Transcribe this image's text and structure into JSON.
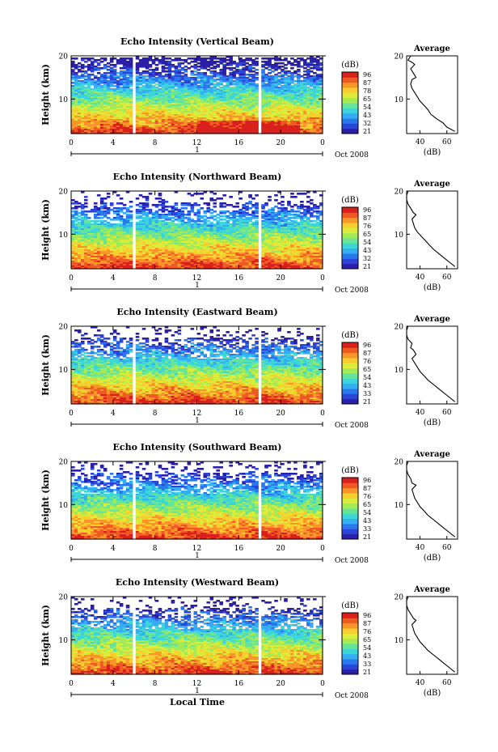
{
  "chart_data": {
    "type": "heatmap",
    "x_axis": {
      "label": "Local Time",
      "ticks": [
        "0",
        "4",
        "8",
        "12",
        "16",
        "20",
        "0"
      ],
      "range": [
        0,
        24
      ],
      "date_label": "Oct 2008",
      "day_label": "1"
    },
    "colorbar": {
      "unit": "(dB)",
      "tick_labels": [
        "96",
        "87",
        "78",
        "65",
        "54",
        "43",
        "32",
        "21"
      ],
      "colors": [
        "#2b1fa8",
        "#2a45d8",
        "#2a78ee",
        "#33aef2",
        "#3dd6d8",
        "#66e49a",
        "#a4ea56",
        "#dcec3a",
        "#f6cf2e",
        "#f8962a",
        "#ef5a24",
        "#d8201c"
      ]
    },
    "average_panel": {
      "title": "Average",
      "xlabel": "(dB)",
      "x_ticks": [
        "40",
        "60"
      ]
    },
    "y_axis": {
      "label": "Height (km)",
      "ticks": [
        "20",
        "10"
      ],
      "range": [
        2,
        20
      ]
    },
    "panels": [
      {
        "title": "Echo Intensity (Vertical Beam)",
        "cb_ticks": [
          "96",
          "87",
          "78",
          "65",
          "54",
          "43",
          "32",
          "21"
        ],
        "avg_x_ticks": [
          "40",
          "60"
        ],
        "avg_profile": [
          [
            66,
            2.5
          ],
          [
            60,
            3.5
          ],
          [
            57,
            4.5
          ],
          [
            52,
            5.5
          ],
          [
            48,
            6.5
          ],
          [
            46,
            7.5
          ],
          [
            43,
            8.5
          ],
          [
            40,
            9.5
          ],
          [
            38,
            10.5
          ],
          [
            36,
            11.5
          ],
          [
            34,
            12.5
          ],
          [
            33,
            13.5
          ],
          [
            34,
            14.5
          ],
          [
            37,
            15
          ],
          [
            35,
            16
          ],
          [
            33,
            17
          ],
          [
            36,
            18
          ],
          [
            34,
            18.5
          ],
          [
            31,
            19
          ],
          [
            33,
            20
          ]
        ]
      },
      {
        "title": "Echo Intensity (Northward Beam)",
        "cb_ticks": [
          "96",
          "87",
          "76",
          "65",
          "54",
          "43",
          "32",
          "21"
        ],
        "avg_x_ticks": [
          "40",
          "60"
        ],
        "avg_profile": [
          [
            66,
            2.5
          ],
          [
            62,
            3.5
          ],
          [
            58,
            4.5
          ],
          [
            54,
            5.5
          ],
          [
            50,
            6.5
          ],
          [
            47,
            7.5
          ],
          [
            44,
            8.5
          ],
          [
            41,
            9.5
          ],
          [
            38,
            10.5
          ],
          [
            36,
            11.5
          ],
          [
            35,
            12.5
          ],
          [
            34,
            13.5
          ],
          [
            37,
            14.5
          ],
          [
            35,
            15
          ],
          [
            33,
            16
          ],
          [
            31,
            17
          ],
          [
            30,
            18
          ],
          [
            30,
            19
          ],
          [
            31,
            20
          ]
        ]
      },
      {
        "title": "Echo Intensity (Eastward Beam)",
        "cb_ticks": [
          "96",
          "87",
          "76",
          "65",
          "54",
          "43",
          "33",
          "21"
        ],
        "avg_x_ticks": [
          "40",
          "60"
        ],
        "avg_profile": [
          [
            66,
            2.5
          ],
          [
            62,
            3.5
          ],
          [
            58,
            4.5
          ],
          [
            54,
            5.5
          ],
          [
            50,
            6.5
          ],
          [
            46,
            7.5
          ],
          [
            43,
            8.5
          ],
          [
            40,
            9.5
          ],
          [
            38,
            10.5
          ],
          [
            36,
            11.5
          ],
          [
            34,
            12.5
          ],
          [
            37,
            13.5
          ],
          [
            35,
            14.5
          ],
          [
            33,
            15
          ],
          [
            34,
            16
          ],
          [
            31,
            17
          ],
          [
            30,
            18
          ],
          [
            30,
            19
          ],
          [
            31,
            20
          ]
        ]
      },
      {
        "title": "Echo Intensity (Southward Beam)",
        "cb_ticks": [
          "96",
          "87",
          "76",
          "65",
          "54",
          "43",
          "33",
          "21"
        ],
        "avg_x_ticks": [
          "40",
          "60"
        ],
        "avg_profile": [
          [
            66,
            2.5
          ],
          [
            62,
            3.5
          ],
          [
            58,
            4.5
          ],
          [
            54,
            5.5
          ],
          [
            50,
            6.5
          ],
          [
            46,
            7.5
          ],
          [
            43,
            8.5
          ],
          [
            40,
            9.5
          ],
          [
            38,
            10.5
          ],
          [
            36,
            11.5
          ],
          [
            35,
            12.5
          ],
          [
            34,
            13.5
          ],
          [
            37,
            14.5
          ],
          [
            34,
            15
          ],
          [
            33,
            16
          ],
          [
            31,
            17
          ],
          [
            30,
            18
          ],
          [
            30,
            19
          ],
          [
            31,
            20
          ]
        ]
      },
      {
        "title": "Echo Intensity (Westward Beam)",
        "cb_ticks": [
          "96",
          "87",
          "76",
          "65",
          "54",
          "43",
          "33",
          "21"
        ],
        "avg_x_ticks": [
          "40",
          "60"
        ],
        "avg_profile": [
          [
            66,
            2.5
          ],
          [
            62,
            3.5
          ],
          [
            58,
            4.5
          ],
          [
            54,
            5.5
          ],
          [
            50,
            6.5
          ],
          [
            46,
            7.5
          ],
          [
            43,
            8.5
          ],
          [
            40,
            9.5
          ],
          [
            38,
            10.5
          ],
          [
            36,
            11.5
          ],
          [
            35,
            12.5
          ],
          [
            34,
            13.5
          ],
          [
            37,
            14.5
          ],
          [
            35,
            15
          ],
          [
            33,
            16
          ],
          [
            31,
            17
          ],
          [
            30,
            18
          ],
          [
            30,
            19
          ],
          [
            31,
            20
          ]
        ]
      }
    ]
  }
}
